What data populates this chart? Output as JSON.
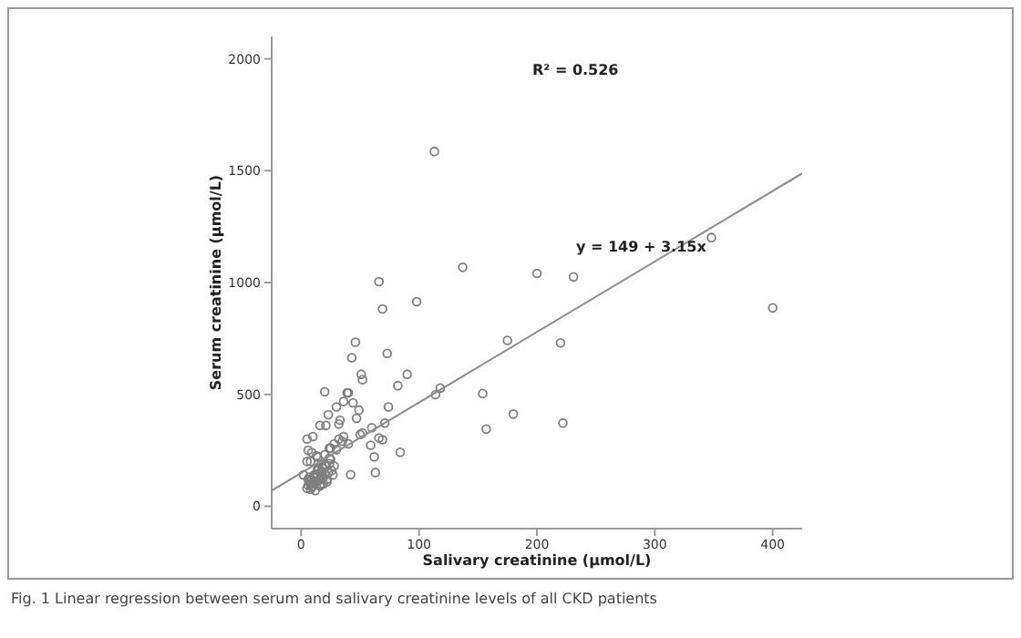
{
  "chart_data": {
    "type": "scatter",
    "xlabel": "Salivary creatinine (μmol/L)",
    "ylabel": "Serum creatinine (μmol/L)",
    "annotations": [
      "R² = 0.526",
      "y = 149 + 3.15x",
      "Fig. 1 Linear regression between serum and salivary creatinine levels of all CKD patients"
    ],
    "xlim": [
      -25,
      425
    ],
    "ylim": [
      -100,
      2100
    ],
    "xticks": [
      0,
      100,
      200,
      300,
      400
    ],
    "yticks": [
      0,
      500,
      1000,
      1500,
      2000
    ],
    "marker": "circle",
    "series": [
      {
        "color": "#7f7f7f",
        "x": [
          66,
          69,
          98,
          137,
          200,
          46,
          43,
          73,
          51,
          52,
          90,
          82,
          20,
          39,
          40,
          114,
          118,
          154,
          157,
          180,
          175,
          74,
          30,
          36,
          44,
          49,
          23,
          16,
          21,
          32,
          60,
          47,
          71,
          10,
          5,
          36,
          50,
          52,
          66,
          69,
          28,
          40,
          84,
          62,
          63,
          42,
          59,
          13,
          24,
          30,
          33,
          231,
          400,
          220,
          222,
          113,
          348,
          5,
          6,
          7,
          8,
          9,
          10,
          11,
          12,
          13,
          14,
          15,
          16,
          17,
          18,
          19,
          20,
          22,
          24,
          26,
          5,
          7,
          9,
          11,
          13,
          15,
          17,
          19,
          21,
          23,
          25,
          6,
          8,
          2,
          12,
          14,
          16,
          18,
          20,
          22,
          27,
          6,
          8,
          12,
          16,
          20,
          24,
          28,
          32,
          9,
          14,
          18,
          25,
          35
        ],
        "values": [
          1004,
          882,
          914,
          1068,
          1041,
          733,
          664,
          683,
          590,
          566,
          590,
          539,
          512,
          507,
          507,
          499,
          528,
          504,
          345,
          412,
          741,
          444,
          444,
          468,
          462,
          430,
          409,
          361,
          361,
          367,
          351,
          393,
          372,
          311,
          300,
          311,
          321,
          328,
          305,
          297,
          279,
          279,
          241,
          221,
          151,
          141,
          273,
          226,
          215,
          253,
          385,
          1025,
          887,
          730,
          372,
          1586,
          1201,
          80,
          95,
          110,
          100,
          120,
          90,
          140,
          105,
          130,
          160,
          115,
          150,
          100,
          175,
          130,
          145,
          120,
          190,
          160,
          200,
          130,
          85,
          115,
          140,
          170,
          125,
          100,
          180,
          150,
          210,
          120,
          75,
          140,
          135,
          165,
          95,
          155,
          185,
          110,
          140,
          250,
          200,
          70,
          90,
          230,
          260,
          180,
          300,
          240,
          220,
          170,
          260,
          290
        ]
      },
      {
        "type": "line",
        "color": "#8c8c8c",
        "marker": "none",
        "x": [
          -25,
          425
        ],
        "values": [
          70,
          1488
        ]
      }
    ]
  }
}
